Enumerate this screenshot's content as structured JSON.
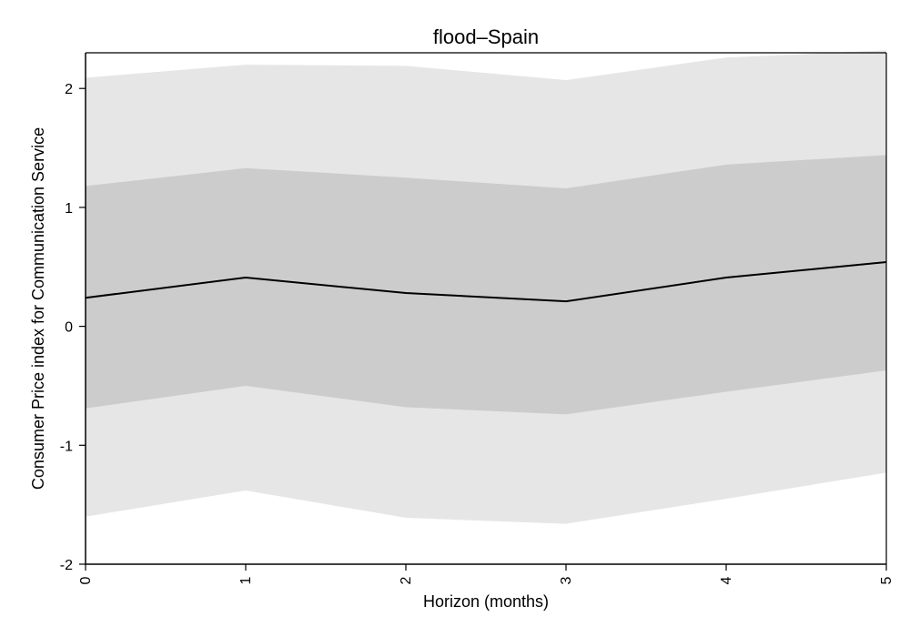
{
  "chart_data": {
    "type": "area",
    "title": "flood–Spain",
    "xlabel": "Horizon (months)",
    "ylabel": "Consumer Price index for Communication Service",
    "x": [
      0,
      1,
      2,
      3,
      4,
      5
    ],
    "xticks": [
      "0",
      "1",
      "2",
      "3",
      "4",
      "5"
    ],
    "yticks": [
      "-2",
      "-1",
      "0",
      "1",
      "2"
    ],
    "ytick_values": [
      -2,
      -1,
      0,
      1,
      2
    ],
    "xlim": [
      0,
      5
    ],
    "ylim": [
      -2,
      2.3
    ],
    "grid": false,
    "series": [
      {
        "values": [
          0.24,
          0.41,
          0.28,
          0.21,
          0.41,
          0.54
        ]
      }
    ],
    "bands": [
      {
        "lower": [
          -1.6,
          -1.38,
          -1.61,
          -1.66,
          -1.45,
          -1.23
        ],
        "upper": [
          2.09,
          2.2,
          2.19,
          2.07,
          2.26,
          2.32
        ],
        "color": "#e6e6e6"
      },
      {
        "lower": [
          -0.69,
          -0.5,
          -0.68,
          -0.74,
          -0.55,
          -0.37
        ],
        "upper": [
          1.18,
          1.33,
          1.25,
          1.16,
          1.36,
          1.44
        ],
        "color": "#cccccc"
      }
    ],
    "line_color": "#000000"
  }
}
